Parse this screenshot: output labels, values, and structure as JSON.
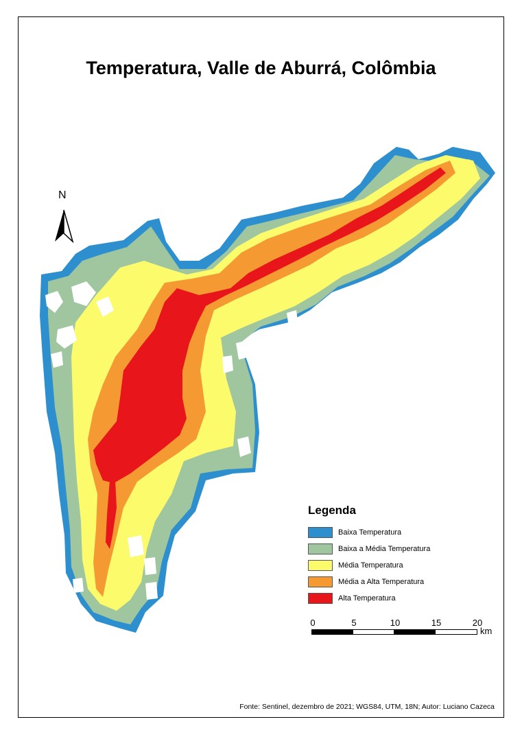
{
  "title": "Temperatura, Valle de Aburrá, Colômbia",
  "north_label": "N",
  "legend": {
    "title": "Legenda",
    "items": [
      {
        "label": "Baixa Temperatura",
        "color": "#2e8fce"
      },
      {
        "label": "Baixa a Média Temperatura",
        "color": "#9fc69e"
      },
      {
        "label": "Média Temperatura",
        "color": "#fbfb6c"
      },
      {
        "label": "Média a Alta Temperatura",
        "color": "#f59a33"
      },
      {
        "label": "Alta Temperatura",
        "color": "#e8151b"
      }
    ]
  },
  "scale": {
    "ticks": [
      "0",
      "5",
      "10",
      "15",
      "20"
    ],
    "unit": "km"
  },
  "source": "Fonte: Sentinel, dezembro de 2021; WGS84, UTM, 18N; Autor: Luciano Cazeca"
}
